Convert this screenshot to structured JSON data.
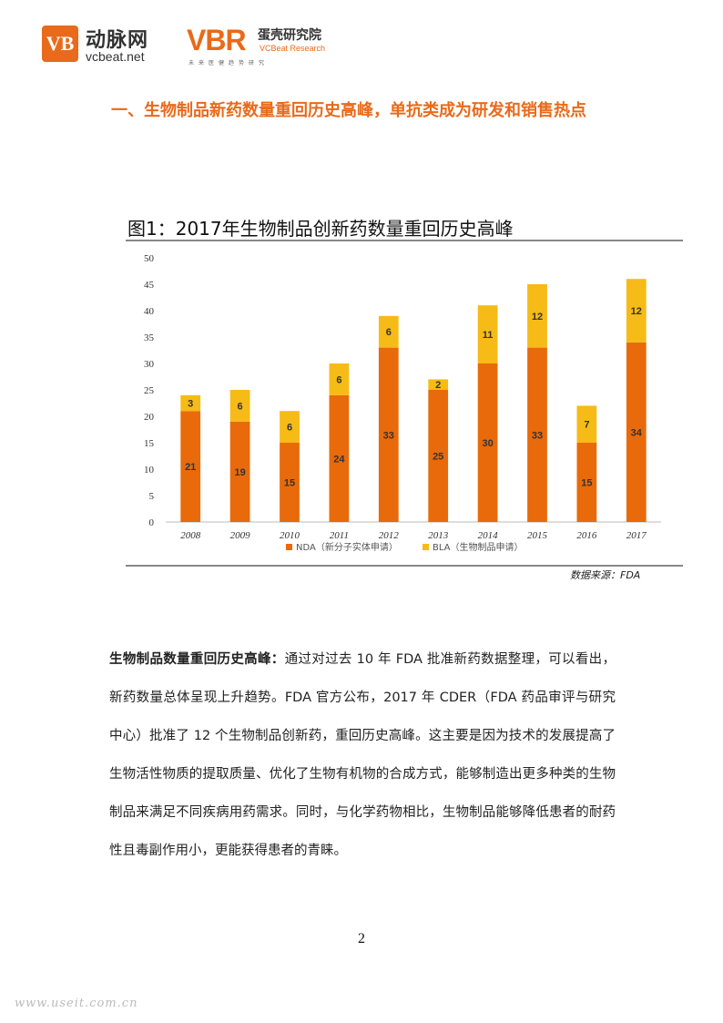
{
  "header": {
    "logo1": {
      "mark": "VB",
      "cn": "动脉网",
      "en": "vcbeat.net"
    },
    "logo2": {
      "mark": "VBR",
      "cn": "蛋壳研究院",
      "en": "VCBeat Research",
      "tagline": "未来医健趋势研究"
    }
  },
  "section_title": "一、生物制品新药数量重回历史高峰，单抗类成为研发和销售热点",
  "figure": {
    "title": "图1：2017年生物制品创新药数量重回历史高峰",
    "source": "数据来源：FDA"
  },
  "chart_data": {
    "type": "bar",
    "stacked": true,
    "categories": [
      "2008",
      "2009",
      "2010",
      "2011",
      "2012",
      "2013",
      "2014",
      "2015",
      "2016",
      "2017"
    ],
    "series": [
      {
        "name": "NDA（新分子实体申请）",
        "color": "#e96a0a",
        "values": [
          21,
          19,
          15,
          24,
          33,
          25,
          30,
          33,
          15,
          34
        ]
      },
      {
        "name": "BLA（生物制品申请）",
        "color": "#f6bb16",
        "values": [
          3,
          6,
          6,
          6,
          6,
          2,
          11,
          12,
          7,
          12
        ]
      }
    ],
    "ylim": [
      0,
      50
    ],
    "yticks": [
      0,
      5,
      10,
      15,
      20,
      25,
      30,
      35,
      40,
      45,
      50
    ],
    "grid": false,
    "legend": "bottom"
  },
  "body": {
    "lead": "生物制品数量重回历史高峰：",
    "text": "通过对过去 10 年 FDA 批准新药数据整理，可以看出，新药数量总体呈现上升趋势。FDA 官方公布，2017 年 CDER（FDA 药品审评与研究中心）批准了 12 个生物制品创新药，重回历史高峰。这主要是因为技术的发展提高了生物活性物质的提取质量、优化了生物有机物的合成方式，能够制造出更多种类的生物制品来满足不同疾病用药需求。同时，与化学药物相比，生物制品能够降低患者的耐药性且毒副作用小，更能获得患者的青睐。"
  },
  "page_number": "2",
  "watermark": "www.useit.com.cn"
}
